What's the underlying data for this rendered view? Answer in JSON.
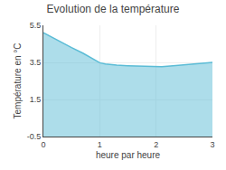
{
  "chart_data": {
    "type": "area",
    "title": "Evolution de la température",
    "xlabel": "heure par heure",
    "ylabel": "Température en °C",
    "x": [
      0,
      0.15,
      0.3,
      0.5,
      0.7,
      0.9,
      1.0,
      1.1,
      1.3,
      1.5,
      1.7,
      1.9,
      2.0,
      2.1,
      2.3,
      2.5,
      2.7,
      2.9,
      3.0
    ],
    "values": [
      5.1,
      4.85,
      4.6,
      4.3,
      4.0,
      3.65,
      3.48,
      3.42,
      3.35,
      3.32,
      3.3,
      3.27,
      3.25,
      3.27,
      3.32,
      3.38,
      3.43,
      3.48,
      3.5
    ],
    "color": "#5bbcd6",
    "xlim": [
      0,
      3
    ],
    "ylim": [
      -0.5,
      5.5
    ],
    "xticks": [
      0,
      1,
      2,
      3
    ],
    "yticks": [
      -0.5,
      1.5,
      3.5,
      5.5
    ],
    "grid": true
  }
}
